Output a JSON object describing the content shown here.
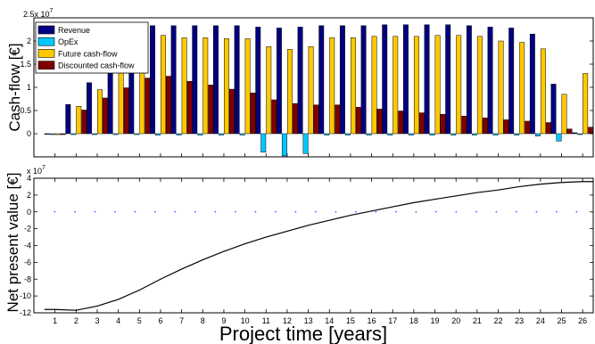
{
  "chart_data": [
    {
      "type": "bar",
      "ylabel": "Cash-flow [€]",
      "exponent_label": "2.5x 10",
      "exponent_power": "7",
      "ylim": [
        -0.5,
        2.5
      ],
      "yticks": [
        0,
        0.5,
        1,
        1.5,
        2
      ],
      "ytick_labels": [
        "0",
        "0.5",
        "1",
        "1.5",
        "2"
      ],
      "scale": 10000000,
      "legend_position": "top-left",
      "categories": [
        1,
        2,
        3,
        4,
        5,
        6,
        7,
        8,
        9,
        10,
        11,
        12,
        13,
        14,
        15,
        16,
        17,
        18,
        19,
        20,
        21,
        22,
        23,
        24,
        25,
        26
      ],
      "series": [
        {
          "name": "Revenue",
          "color": "#000080",
          "values": [
            0.0,
            0.63,
            1.1,
            1.42,
            1.95,
            2.33,
            2.33,
            2.33,
            2.33,
            2.33,
            2.3,
            2.28,
            2.3,
            2.33,
            2.33,
            2.33,
            2.35,
            2.35,
            2.35,
            2.35,
            2.33,
            2.3,
            2.28,
            2.15,
            1.07,
            0.02
          ]
        },
        {
          "name": "OpEx",
          "color": "#00c8ff",
          "values": [
            -0.02,
            -0.02,
            -0.02,
            -0.02,
            -0.02,
            -0.03,
            -0.03,
            -0.03,
            -0.03,
            -0.03,
            -0.4,
            -0.48,
            -0.43,
            -0.03,
            -0.03,
            -0.03,
            -0.03,
            -0.03,
            -0.03,
            -0.03,
            -0.03,
            -0.03,
            -0.03,
            -0.05,
            -0.16,
            -0.02
          ]
        },
        {
          "name": "Future cash-flow",
          "color": "#ffc800",
          "values": [
            -0.02,
            0.59,
            0.95,
            1.38,
            1.75,
            2.12,
            2.07,
            2.07,
            2.05,
            2.05,
            1.88,
            1.82,
            1.88,
            2.07,
            2.07,
            2.1,
            2.1,
            2.1,
            2.12,
            2.12,
            2.1,
            2.0,
            1.97,
            1.83,
            0.85,
            1.3
          ]
        },
        {
          "name": "Discounted cash-flow",
          "color": "#800000",
          "values": [
            -0.02,
            0.51,
            0.77,
            0.99,
            1.2,
            1.24,
            1.13,
            1.05,
            0.96,
            0.88,
            0.73,
            0.65,
            0.62,
            0.62,
            0.57,
            0.53,
            0.49,
            0.45,
            0.42,
            0.38,
            0.34,
            0.3,
            0.27,
            0.24,
            0.1,
            0.14
          ]
        }
      ]
    },
    {
      "type": "line",
      "ylabel": "Net present value [€]",
      "xlabel": "Project time [years]",
      "exponent_label": "x 10",
      "exponent_power": "7",
      "xlim": [
        0,
        26.5
      ],
      "ylim": [
        -12,
        4
      ],
      "yticks": [
        -12,
        -10,
        -8,
        -6,
        -4,
        -2,
        0,
        2,
        4
      ],
      "ytick_labels": [
        "-12",
        "-10",
        "-8",
        "-6",
        "-4",
        "-2",
        "0",
        "2",
        "4"
      ],
      "xticks": [
        1,
        2,
        3,
        4,
        5,
        6,
        7,
        8,
        9,
        10,
        11,
        12,
        13,
        14,
        15,
        16,
        17,
        18,
        19,
        20,
        21,
        22,
        23,
        24,
        25,
        26
      ],
      "xtick_labels": [
        "1",
        "2",
        "3",
        "4",
        "5",
        "6",
        "7",
        "8",
        "9",
        "10",
        "11",
        "12",
        "13",
        "14",
        "15",
        "16",
        "17",
        "18",
        "19",
        "20",
        "21",
        "22",
        "23",
        "24",
        "25",
        "26"
      ],
      "reference_value": 0,
      "series": [
        {
          "color": "#000000",
          "x": [
            0.5,
            1,
            2,
            3,
            4,
            5,
            6,
            7,
            8,
            9,
            10,
            11,
            12,
            13,
            14,
            15,
            16,
            17,
            18,
            19,
            20,
            21,
            22,
            23,
            24,
            25,
            26,
            26.5
          ],
          "y": [
            -11.6,
            -11.6,
            -11.7,
            -11.2,
            -10.4,
            -9.3,
            -8.0,
            -6.8,
            -5.7,
            -4.7,
            -3.8,
            -3.0,
            -2.3,
            -1.6,
            -1.0,
            -0.4,
            0.1,
            0.6,
            1.1,
            1.5,
            1.9,
            2.3,
            2.6,
            3.0,
            3.3,
            3.5,
            3.6,
            3.6
          ]
        }
      ]
    }
  ]
}
